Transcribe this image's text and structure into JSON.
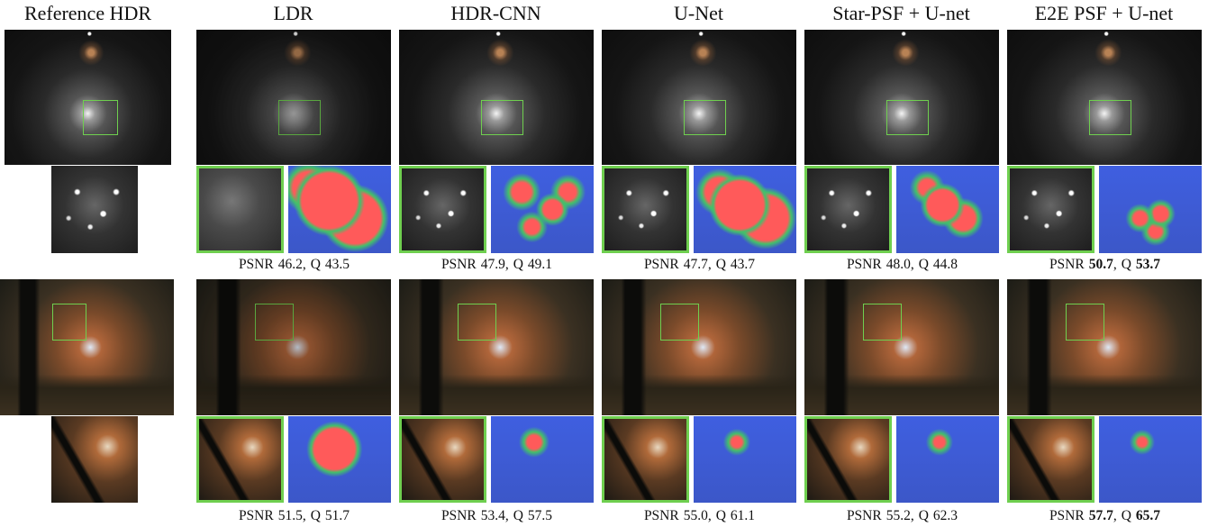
{
  "columns": [
    "Reference HDR",
    "LDR",
    "HDR-CNN",
    "U-Net",
    "Star-PSF + U-net",
    "E2E PSF + U-net"
  ],
  "metric_labels": {
    "psnr": "PSNR",
    "q": "Q",
    "separator": ","
  },
  "rows": [
    {
      "results": [
        {
          "psnr": "46.2",
          "q": "43.5"
        },
        {
          "psnr": "47.9",
          "q": "49.1"
        },
        {
          "psnr": "47.7",
          "q": "43.7"
        },
        {
          "psnr": "48.0",
          "q": "44.8"
        },
        {
          "psnr": "50.7",
          "q": "53.7",
          "best": true
        }
      ]
    },
    {
      "results": [
        {
          "psnr": "51.5",
          "q": "51.7"
        },
        {
          "psnr": "53.4",
          "q": "57.5"
        },
        {
          "psnr": "55.0",
          "q": "61.1"
        },
        {
          "psnr": "55.2",
          "q": "62.3"
        },
        {
          "psnr": "57.7",
          "q": "65.7",
          "best": true
        }
      ]
    }
  ]
}
